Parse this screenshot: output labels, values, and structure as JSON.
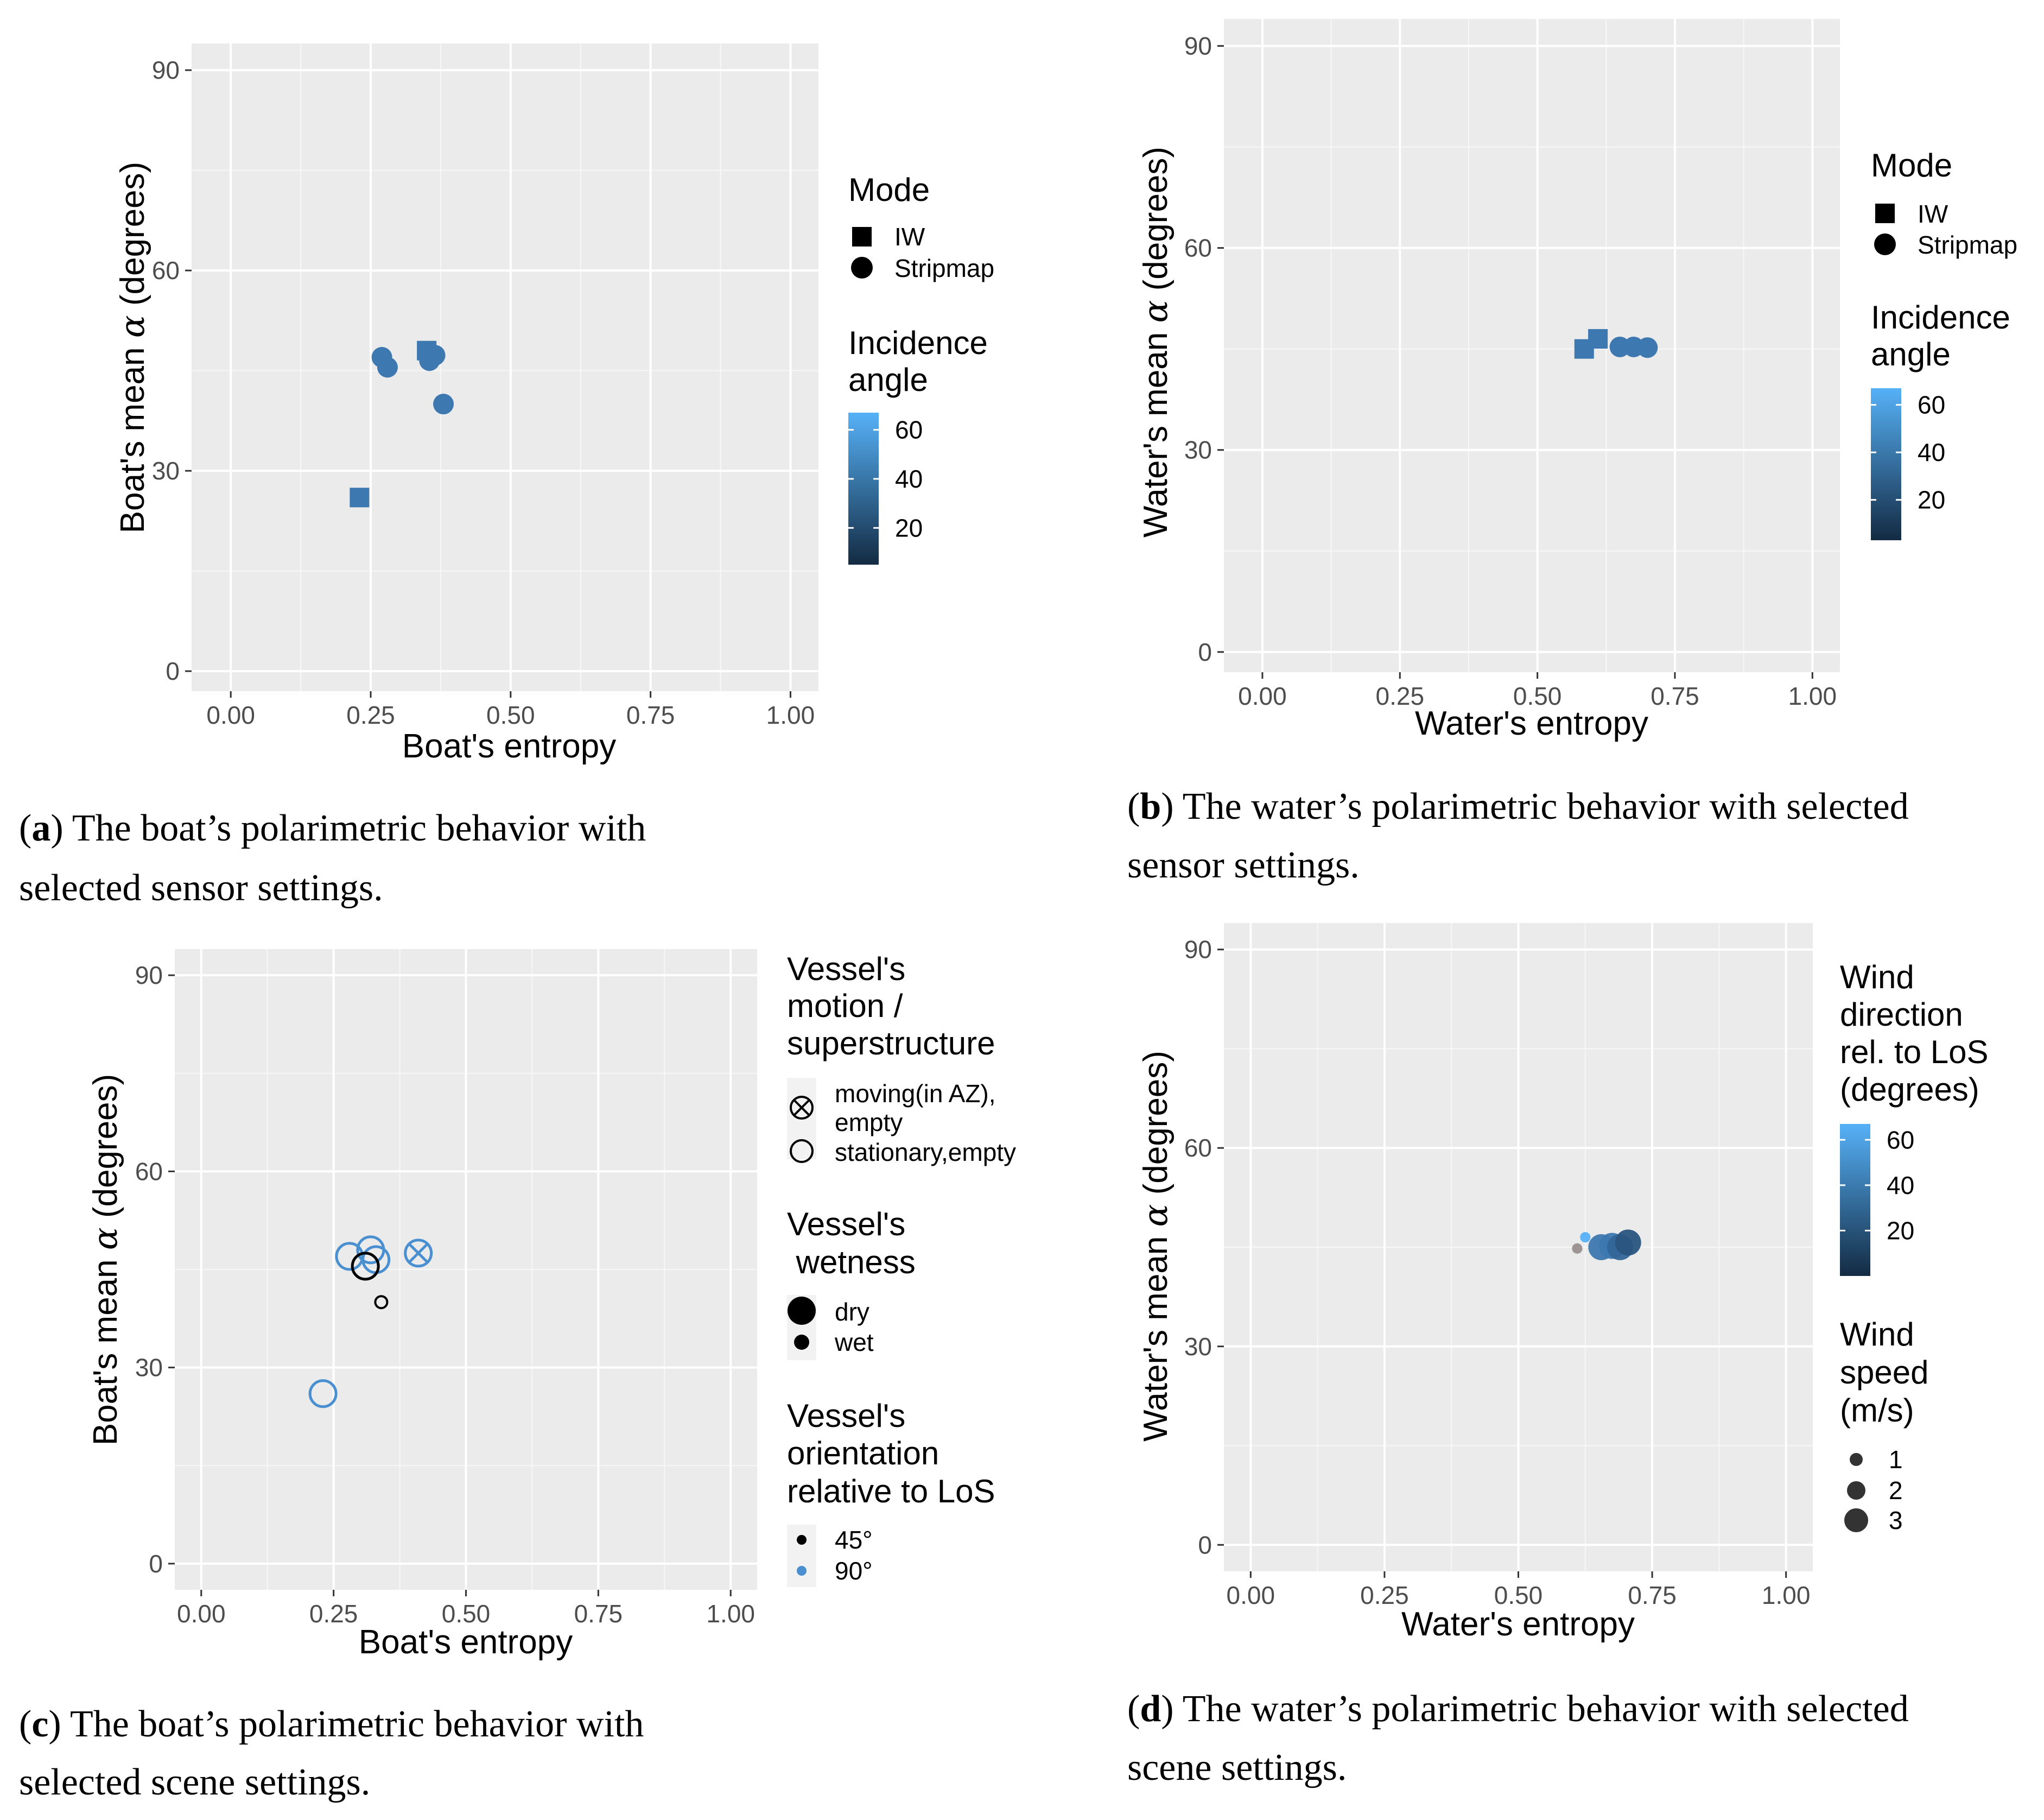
{
  "chart_data": [
    {
      "id": "a",
      "type": "scatter",
      "title": "",
      "xlabel": "Boat's entropy",
      "ylabel_prefix": "Boat's mean ",
      "ylabel_symbol": "α",
      "ylabel_suffix": " (degrees)",
      "xlim": [
        -0.07,
        1.05
      ],
      "ylim": [
        -3,
        94
      ],
      "xticks": [
        0,
        0.25,
        0.5,
        0.75,
        1
      ],
      "xtick_labels": [
        "0.00",
        "0.25",
        "0.50",
        "0.75",
        "1.00"
      ],
      "yticks": [
        0,
        30,
        60,
        90
      ],
      "ytick_labels": [
        "0",
        "30",
        "60",
        "90"
      ],
      "points": [
        {
          "x": 0.23,
          "y": 26,
          "shape": "square",
          "color": "#3d78b0"
        },
        {
          "x": 0.35,
          "y": 48,
          "shape": "square",
          "color": "#3d78b0"
        },
        {
          "x": 0.27,
          "y": 47,
          "shape": "circle",
          "color": "#3d78b0"
        },
        {
          "x": 0.28,
          "y": 45.5,
          "shape": "circle",
          "color": "#3d78b0"
        },
        {
          "x": 0.355,
          "y": 46.5,
          "shape": "circle",
          "color": "#3d78b0"
        },
        {
          "x": 0.365,
          "y": 47.3,
          "shape": "circle",
          "color": "#3d78b0"
        },
        {
          "x": 0.38,
          "y": 40,
          "shape": "circle",
          "color": "#3d78b0"
        }
      ],
      "legend": {
        "mode_title": "Mode",
        "mode_items": [
          {
            "label": "IW",
            "shape": "square"
          },
          {
            "label": "Stripmap",
            "shape": "circle"
          }
        ],
        "colorbar_title": [
          "Incidence",
          "angle"
        ],
        "colorbar_ticks": [
          20,
          40,
          60
        ],
        "colorbar_range": [
          5,
          67
        ],
        "colorbar_colors": [
          "#132b43",
          "#56b1f7"
        ]
      },
      "caption_letter": "a",
      "caption_lines": [
        "The boat’s polarimetric behavior with",
        "selected sensor settings."
      ]
    },
    {
      "id": "b",
      "type": "scatter",
      "title": "",
      "xlabel": "Water's entropy",
      "ylabel_prefix": "Water's mean ",
      "ylabel_symbol": "α",
      "ylabel_suffix": " (degrees)",
      "xlim": [
        -0.07,
        1.05
      ],
      "ylim": [
        -3,
        94
      ],
      "xticks": [
        0,
        0.25,
        0.5,
        0.75,
        1
      ],
      "xtick_labels": [
        "0.00",
        "0.25",
        "0.50",
        "0.75",
        "1.00"
      ],
      "yticks": [
        0,
        30,
        60,
        90
      ],
      "ytick_labels": [
        "0",
        "30",
        "60",
        "90"
      ],
      "points": [
        {
          "x": 0.585,
          "y": 45,
          "shape": "square",
          "color": "#3d78b0"
        },
        {
          "x": 0.61,
          "y": 46.5,
          "shape": "square",
          "color": "#3d78b0"
        },
        {
          "x": 0.65,
          "y": 45.3,
          "shape": "circle",
          "color": "#3d78b0"
        },
        {
          "x": 0.675,
          "y": 45.3,
          "shape": "circle",
          "color": "#3d78b0"
        },
        {
          "x": 0.7,
          "y": 45.2,
          "shape": "circle",
          "color": "#3d78b0"
        }
      ],
      "legend": {
        "mode_title": "Mode",
        "mode_items": [
          {
            "label": "IW",
            "shape": "square"
          },
          {
            "label": "Stripmap",
            "shape": "circle"
          }
        ],
        "colorbar_title": [
          "Incidence",
          "angle"
        ],
        "colorbar_ticks": [
          20,
          40,
          60
        ],
        "colorbar_range": [
          3,
          67
        ],
        "colorbar_colors": [
          "#132b43",
          "#56b1f7"
        ]
      },
      "caption_letter": "b",
      "caption_lines": [
        "The water’s polarimetric behavior with selected",
        "sensor settings."
      ]
    },
    {
      "id": "c",
      "type": "scatter",
      "title": "",
      "xlabel": "Boat's entropy",
      "ylabel_prefix": "Boat's mean ",
      "ylabel_symbol": "α",
      "ylabel_suffix": " (degrees)",
      "xlim": [
        -0.05,
        1.05
      ],
      "ylim": [
        -4,
        94
      ],
      "xticks": [
        0,
        0.25,
        0.5,
        0.75,
        1
      ],
      "xtick_labels": [
        "0.00",
        "0.25",
        "0.50",
        "0.75",
        "1.00"
      ],
      "yticks": [
        0,
        30,
        60,
        90
      ],
      "ytick_labels": [
        "0",
        "30",
        "60",
        "90"
      ],
      "points": [
        {
          "x": 0.23,
          "y": 26,
          "shape": "open-circle",
          "size": "dry",
          "color": "#4a90d0"
        },
        {
          "x": 0.28,
          "y": 47,
          "shape": "open-circle",
          "size": "dry",
          "color": "#4a90d0"
        },
        {
          "x": 0.32,
          "y": 48,
          "shape": "open-circle",
          "size": "dry",
          "color": "#4a90d0"
        },
        {
          "x": 0.33,
          "y": 46.5,
          "shape": "open-circle",
          "size": "dry",
          "color": "#4a90d0"
        },
        {
          "x": 0.31,
          "y": 45.5,
          "shape": "open-circle",
          "size": "dry",
          "color": "#000000"
        },
        {
          "x": 0.34,
          "y": 40,
          "shape": "open-circle",
          "size": "wet",
          "color": "#000000"
        },
        {
          "x": 0.41,
          "y": 47.5,
          "shape": "circle-x",
          "size": "dry",
          "color": "#4a90d0"
        }
      ],
      "legend": {
        "groups": [
          {
            "title": [
              "Vessel's",
              "motion /",
              "superstructure"
            ],
            "items": [
              {
                "label_lines": [
                  "moving(in AZ),",
                  "empty"
                ],
                "symbol": "circle-x"
              },
              {
                "label_lines": [
                  "stationary,empty"
                ],
                "symbol": "open-circle"
              }
            ]
          },
          {
            "title": [
              "Vessel's",
              " wetness"
            ],
            "items": [
              {
                "label_lines": [
                  "dry"
                ],
                "symbol": "dot-large"
              },
              {
                "label_lines": [
                  "wet"
                ],
                "symbol": "dot-small"
              }
            ]
          },
          {
            "title": [
              "Vessel's",
              "orientation",
              "relative to LoS"
            ],
            "items": [
              {
                "label_lines": [
                  "45°"
                ],
                "symbol": "dot-black"
              },
              {
                "label_lines": [
                  "90°"
                ],
                "symbol": "dot-blue"
              }
            ]
          }
        ]
      },
      "caption_letter": "c",
      "caption_lines": [
        "The boat’s polarimetric behavior with",
        "selected scene settings."
      ]
    },
    {
      "id": "d",
      "type": "scatter",
      "title": "",
      "xlabel": "Water's entropy",
      "ylabel_prefix": "Water's mean ",
      "ylabel_symbol": "α",
      "ylabel_suffix": " (degrees)",
      "xlim": [
        -0.05,
        1.05
      ],
      "ylim": [
        -4,
        94
      ],
      "xticks": [
        0,
        0.25,
        0.5,
        0.75,
        1
      ],
      "xtick_labels": [
        "0.00",
        "0.25",
        "0.50",
        "0.75",
        "1.00"
      ],
      "yticks": [
        0,
        30,
        60,
        90
      ],
      "ytick_labels": [
        "0",
        "30",
        "60",
        "90"
      ],
      "points": [
        {
          "x": 0.61,
          "y": 44.8,
          "wind_speed": 0.6,
          "color": "#9a8f8f"
        },
        {
          "x": 0.625,
          "y": 46.5,
          "wind_speed": 0.6,
          "color": "#56b1f7"
        },
        {
          "x": 0.655,
          "y": 45.0,
          "wind_speed": 3,
          "color": "#3d78b0"
        },
        {
          "x": 0.675,
          "y": 45.2,
          "wind_speed": 3,
          "color": "#3d78b0"
        },
        {
          "x": 0.69,
          "y": 45.0,
          "wind_speed": 3,
          "color": "#336699"
        },
        {
          "x": 0.705,
          "y": 45.7,
          "wind_speed": 3,
          "color": "#2a5580"
        }
      ],
      "legend": {
        "colorbar_title": [
          "Wind",
          "direction",
          "rel. to LoS",
          "(degrees)"
        ],
        "colorbar_ticks": [
          20,
          40,
          60
        ],
        "colorbar_range": [
          0,
          67
        ],
        "colorbar_colors": [
          "#132b43",
          "#56b1f7"
        ],
        "size_title": [
          "Wind",
          "speed",
          "(m/s)"
        ],
        "size_items": [
          "1",
          "2",
          "3"
        ]
      },
      "caption_letter": "d",
      "caption_lines": [
        "The water’s polarimetric behavior with selected",
        "scene settings."
      ]
    }
  ]
}
